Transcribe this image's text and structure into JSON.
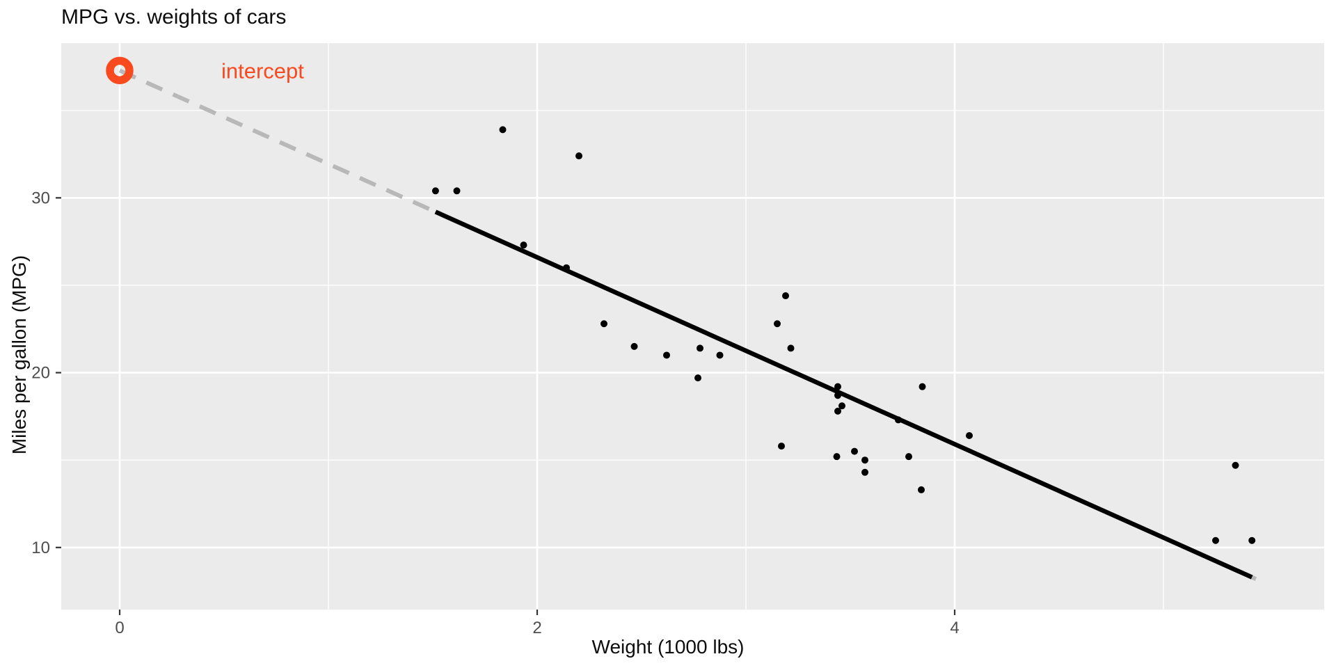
{
  "chart_data": {
    "type": "scatter",
    "title": "MPG vs. weights of cars",
    "xlabel": "Weight (1000 lbs)",
    "ylabel": "Miles per gallon (MPG)",
    "xlim": [
      -0.28,
      5.77
    ],
    "ylim": [
      6.45,
      38.85
    ],
    "x_major_ticks": [
      0,
      2,
      4
    ],
    "x_minor_ticks": [
      1,
      3,
      5
    ],
    "y_major_ticks": [
      10,
      20,
      30
    ],
    "y_minor_ticks": [
      15,
      25,
      35
    ],
    "grid": "on",
    "legend": "none",
    "points": [
      [
        2.62,
        21.0
      ],
      [
        2.875,
        21.0
      ],
      [
        2.32,
        22.8
      ],
      [
        3.215,
        21.4
      ],
      [
        3.44,
        18.7
      ],
      [
        3.46,
        18.1
      ],
      [
        3.57,
        14.3
      ],
      [
        3.19,
        24.4
      ],
      [
        3.15,
        22.8
      ],
      [
        3.44,
        19.2
      ],
      [
        3.44,
        17.8
      ],
      [
        4.07,
        16.4
      ],
      [
        3.73,
        17.3
      ],
      [
        3.78,
        15.2
      ],
      [
        5.25,
        10.4
      ],
      [
        5.424,
        10.4
      ],
      [
        5.345,
        14.7
      ],
      [
        2.2,
        32.4
      ],
      [
        1.615,
        30.4
      ],
      [
        1.835,
        33.9
      ],
      [
        2.465,
        21.5
      ],
      [
        3.52,
        15.5
      ],
      [
        3.435,
        15.2
      ],
      [
        3.84,
        13.3
      ],
      [
        3.845,
        19.2
      ],
      [
        1.935,
        27.3
      ],
      [
        2.14,
        26.0
      ],
      [
        1.513,
        30.4
      ],
      [
        3.17,
        15.8
      ],
      [
        2.77,
        19.7
      ],
      [
        3.57,
        15.0
      ],
      [
        2.78,
        21.4
      ]
    ],
    "regression": {
      "intercept": 37.285,
      "slope": -5.344,
      "solid_x_range": [
        1.513,
        5.424
      ],
      "dashed_x_range": [
        0.0,
        5.47
      ]
    },
    "annotation": {
      "label": "intercept",
      "x": 0,
      "y": 37.285
    }
  },
  "colors": {
    "panel_background": "#EBEBEB",
    "grid_major": "#FFFFFF",
    "grid_minor": "#FFFFFF",
    "points": "#000000",
    "regression_solid": "#000000",
    "regression_dashed": "#B8B8B8",
    "annotation_accent": "#F84A1E",
    "tick_text": "#4D4D4D",
    "tick_mark": "#333333",
    "title_text": "#0d0d0d"
  }
}
